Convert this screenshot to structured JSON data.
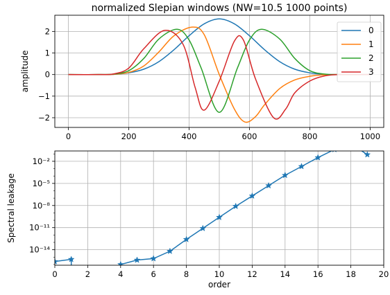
{
  "chart_data": [
    {
      "type": "line",
      "title": "normalized Slepian windows (NW=10.5    1000 points)",
      "xlabel": "",
      "ylabel": "amplitude",
      "xlim": [
        -45,
        1045
      ],
      "ylim": [
        -2.45,
        2.75
      ],
      "xticks": [
        0,
        200,
        400,
        600,
        800,
        1000
      ],
      "yticks": [
        -2,
        -1,
        0,
        1,
        2
      ],
      "ytick_labels": [
        "−2",
        "−1",
        "0",
        "1",
        "2"
      ],
      "grid": true,
      "legend": "top-right",
      "series": [
        {
          "name": "0",
          "color": "#1f77b4",
          "x": [
            0,
            100,
            150,
            200,
            250,
            300,
            350,
            400,
            450,
            500,
            550,
            600,
            650,
            700,
            750,
            800,
            850,
            900,
            1000
          ],
          "y": [
            0,
            0,
            0.01,
            0.08,
            0.25,
            0.6,
            1.15,
            1.8,
            2.35,
            2.58,
            2.35,
            1.8,
            1.15,
            0.6,
            0.25,
            0.08,
            0.01,
            0,
            0
          ]
        },
        {
          "name": "1",
          "color": "#ff7f0e",
          "x": [
            0,
            100,
            150,
            200,
            250,
            300,
            350,
            410,
            450,
            500,
            550,
            585,
            620,
            650,
            700,
            750,
            800,
            850,
            900,
            1000
          ],
          "y": [
            0,
            0,
            0.01,
            0.1,
            0.4,
            1.05,
            1.8,
            2.2,
            1.85,
            0,
            -1.6,
            -2.2,
            -1.95,
            -1.4,
            -0.65,
            -0.25,
            -0.08,
            -0.01,
            0,
            0
          ]
        },
        {
          "name": "2",
          "color": "#2ca02c",
          "x": [
            0,
            100,
            150,
            200,
            250,
            300,
            360,
            400,
            440,
            500,
            560,
            600,
            640,
            700,
            750,
            800,
            850,
            900,
            1000
          ],
          "y": [
            0,
            0,
            0.02,
            0.18,
            0.75,
            1.65,
            2.1,
            1.6,
            0.3,
            -1.75,
            0.3,
            1.6,
            2.1,
            1.65,
            0.75,
            0.18,
            0.02,
            0,
            0
          ]
        },
        {
          "name": "3",
          "color": "#d62728",
          "x": [
            0,
            100,
            150,
            200,
            250,
            320,
            380,
            420,
            450,
            500,
            550,
            580,
            620,
            680,
            720,
            750,
            800,
            850,
            900,
            1000
          ],
          "y": [
            0,
            0,
            0.03,
            0.3,
            1.2,
            2.05,
            1.4,
            -0.6,
            -1.65,
            -0.3,
            1.55,
            1.6,
            -0.2,
            -2.0,
            -1.6,
            -0.85,
            -0.3,
            -0.06,
            0,
            0
          ]
        }
      ]
    },
    {
      "type": "line",
      "title": "",
      "xlabel": "order",
      "ylabel": "Spectral leakage",
      "xlim": [
        0,
        20
      ],
      "ylog_range": [
        -16.1,
        -0.6
      ],
      "xticks": [
        0,
        2,
        4,
        6,
        8,
        10,
        12,
        14,
        16,
        18,
        20
      ],
      "yticks_exp": [
        -2,
        -5,
        -8,
        -11,
        -14
      ],
      "ytick_labels": [
        "10⁻²",
        "10⁻⁵",
        "10⁻⁸",
        "10⁻¹¹",
        "10⁻¹⁴"
      ],
      "yscale": "log",
      "grid": true,
      "marker": "star",
      "series": [
        {
          "color": "#1f77b4",
          "x": [
            0,
            1,
            4,
            5,
            6,
            7,
            8,
            9,
            10,
            11,
            12,
            13,
            14,
            15,
            16,
            17,
            18,
            19
          ],
          "y_exp": [
            -15.6,
            -15.3,
            -16.0,
            -15.4,
            -15.2,
            -14.2,
            -12.6,
            -11.1,
            -9.6,
            -8.1,
            -6.7,
            -5.3,
            -3.9,
            -2.7,
            -1.5,
            -0.4,
            0.4,
            -1.1
          ]
        }
      ]
    }
  ]
}
